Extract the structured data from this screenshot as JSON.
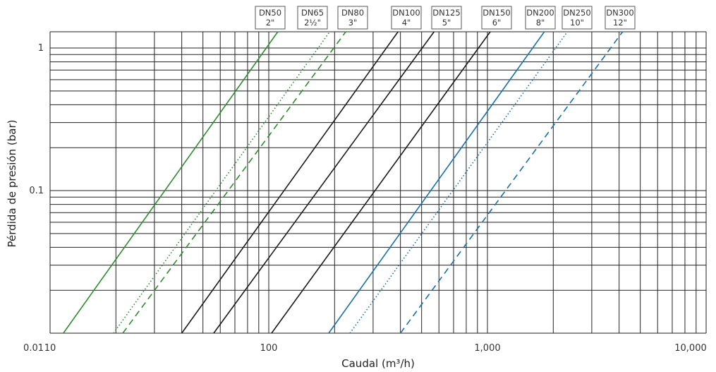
{
  "chart_data": {
    "type": "line",
    "title": "",
    "xlabel": "Caudal (m³/h)",
    "ylabel": "Pérdida de presión (bar)",
    "xscale": "log",
    "yscale": "log",
    "xlim": [
      10,
      10000
    ],
    "ylim": [
      0.01,
      1.3
    ],
    "grid": true,
    "x_tick_labels": [
      {
        "value": 10,
        "label": "10"
      },
      {
        "value": 100,
        "label": "100"
      },
      {
        "value": 1000,
        "label": "1,000"
      },
      {
        "value": 10000,
        "label": "10,000"
      }
    ],
    "y_tick_labels": [
      {
        "value": 0.01,
        "label": "0.01"
      },
      {
        "value": 0.1,
        "label": "0.1"
      },
      {
        "value": 1,
        "label": "1"
      }
    ],
    "series": [
      {
        "name": "DN50 2\"",
        "size": "DN50",
        "inch": "2\"",
        "color": "#2e8b2e",
        "dash": "solid",
        "x": [
          11.5,
          110
        ],
        "y": [
          0.01,
          1.3
        ]
      },
      {
        "name": "DN65 2½\"",
        "size": "DN65",
        "inch": "2½\"",
        "color": "#2e8b2e",
        "dash": "dotted",
        "x": [
          19.5,
          190
        ],
        "y": [
          0.01,
          1.3
        ]
      },
      {
        "name": "DN80 3\"",
        "size": "DN80",
        "inch": "3\"",
        "color": "#2e8b2e",
        "dash": "dashed",
        "x": [
          21.5,
          225
        ],
        "y": [
          0.01,
          1.3
        ]
      },
      {
        "name": "DN100 4\"",
        "size": "DN100",
        "inch": "4\"",
        "color": "#1a1a1a",
        "dash": "solid",
        "x": [
          40,
          390
        ],
        "y": [
          0.01,
          1.3
        ]
      },
      {
        "name": "DN125 5\"",
        "size": "DN125",
        "inch": "5\"",
        "color": "#1a1a1a",
        "dash": "solid",
        "x": [
          56,
          570
        ],
        "y": [
          0.01,
          1.3
        ]
      },
      {
        "name": "DN150 6\"",
        "size": "DN150",
        "inch": "6\"",
        "color": "#1a1a1a",
        "dash": "solid",
        "x": [
          103,
          1030
        ],
        "y": [
          0.01,
          1.3
        ]
      },
      {
        "name": "DN200 8\"",
        "size": "DN200",
        "inch": "8\"",
        "color": "#1a6fa8",
        "dash": "solid",
        "x": [
          188,
          1820
        ],
        "y": [
          0.01,
          1.3
        ]
      },
      {
        "name": "DN250 10\"",
        "size": "DN250",
        "inch": "10\"",
        "color": "#1a6fa8",
        "dash": "dotted",
        "x": [
          235,
          2320
        ],
        "y": [
          0.01,
          1.3
        ]
      },
      {
        "name": "DN300 12\"",
        "size": "DN300",
        "inch": "12\"",
        "color": "#1a6fa8",
        "dash": "dashed",
        "x": [
          400,
          4150
        ],
        "y": [
          0.01,
          1.3
        ]
      }
    ]
  }
}
